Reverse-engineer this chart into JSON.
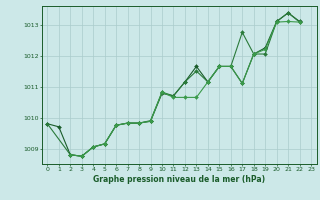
{
  "background_color": "#cce8e8",
  "grid_color": "#aacccc",
  "line_color_dark": "#1a5c2a",
  "line_color_mid": "#2a7a3a",
  "line_color_light": "#3a9a4a",
  "xlabel": "Graphe pression niveau de la mer (hPa)",
  "xlim": [
    -0.5,
    23.5
  ],
  "ylim": [
    1008.5,
    1013.6
  ],
  "yticks": [
    1009,
    1010,
    1011,
    1012,
    1013
  ],
  "xticks": [
    0,
    1,
    2,
    3,
    4,
    5,
    6,
    7,
    8,
    9,
    10,
    11,
    12,
    13,
    14,
    15,
    16,
    17,
    18,
    19,
    20,
    21,
    22,
    23
  ],
  "series1_x": [
    0,
    1,
    2,
    3,
    4,
    5,
    6,
    7,
    8,
    9,
    10,
    11,
    12,
    13,
    14,
    15,
    16,
    17,
    18,
    19,
    20,
    21,
    22
  ],
  "series1_y": [
    1009.8,
    1009.7,
    1008.8,
    1008.75,
    1009.05,
    1009.15,
    1009.75,
    1009.82,
    1009.82,
    1009.88,
    1010.78,
    1010.7,
    1011.15,
    1011.65,
    1011.15,
    1011.65,
    1011.65,
    1011.1,
    1012.05,
    1012.25,
    1013.1,
    1013.38,
    1013.1
  ],
  "series2_x": [
    0,
    2,
    3,
    4,
    5,
    6,
    7,
    8,
    9,
    10,
    11,
    12,
    13,
    14,
    15,
    16,
    17,
    18,
    19,
    20,
    21,
    22
  ],
  "series2_y": [
    1009.8,
    1008.8,
    1008.75,
    1009.05,
    1009.15,
    1009.75,
    1009.82,
    1009.82,
    1009.9,
    1010.82,
    1010.7,
    1011.15,
    1011.5,
    1011.15,
    1011.65,
    1011.65,
    1012.75,
    1012.05,
    1012.05,
    1013.1,
    1013.38,
    1013.08
  ],
  "series3_x": [
    2,
    3,
    4,
    5,
    6,
    7,
    8,
    9,
    10,
    11,
    12,
    13,
    14,
    15,
    16,
    17,
    18,
    19,
    20,
    21,
    22
  ],
  "series3_y": [
    1008.8,
    1008.75,
    1009.05,
    1009.15,
    1009.75,
    1009.82,
    1009.82,
    1009.88,
    1010.82,
    1010.65,
    1010.65,
    1010.65,
    1011.15,
    1011.65,
    1011.65,
    1011.1,
    1012.05,
    1012.2,
    1013.08,
    1013.1,
    1013.08
  ]
}
